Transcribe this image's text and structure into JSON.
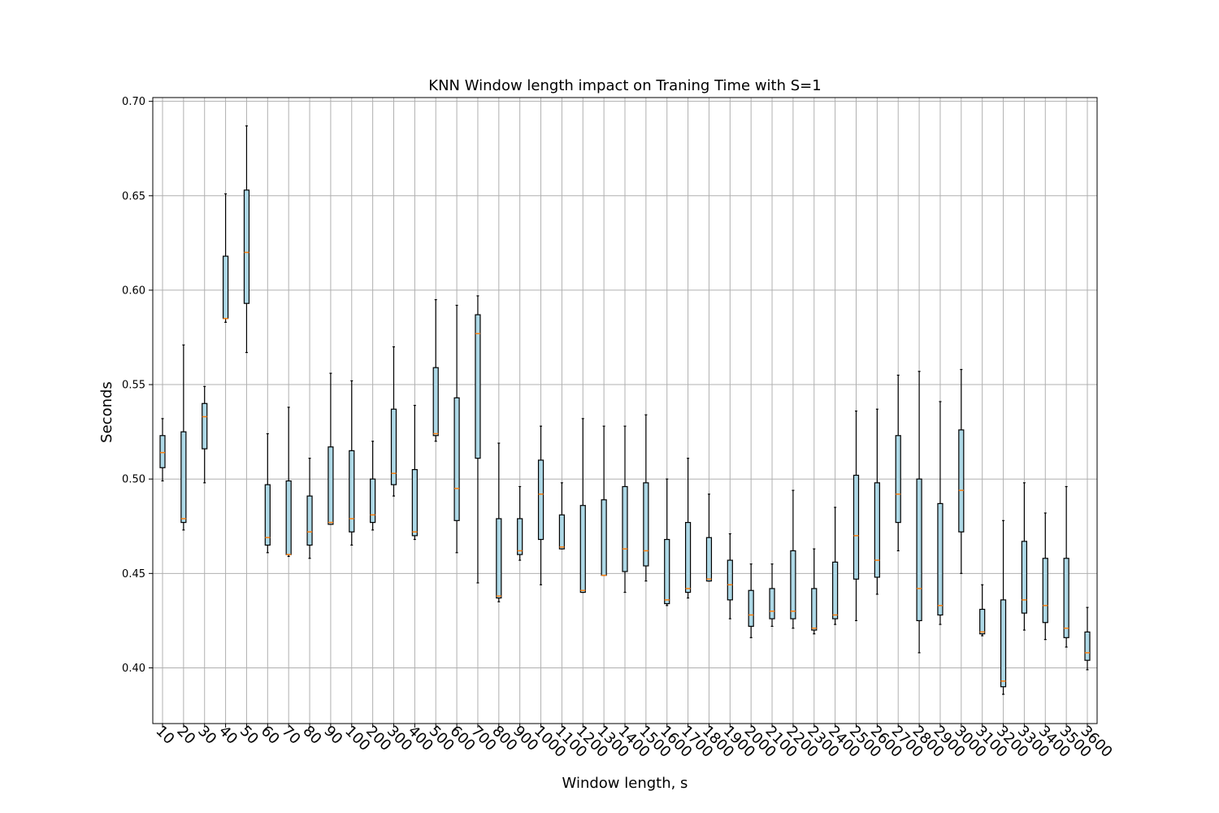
{
  "chart_data": {
    "type": "box",
    "title": "KNN Window length impact on Traning Time with S=1",
    "xlabel": "Window length, s",
    "ylabel": "Seconds",
    "ylim": [
      0.3705,
      0.702
    ],
    "yticks": [
      0.4,
      0.45,
      0.5,
      0.55,
      0.6,
      0.65,
      0.7
    ],
    "ytick_labels": [
      "0.40",
      "0.45",
      "0.50",
      "0.55",
      "0.60",
      "0.65",
      "0.70"
    ],
    "grid": true,
    "box_color": "#add8e6",
    "median_color": "#ff7f0e",
    "categories": [
      "10",
      "20",
      "30",
      "40",
      "50",
      "60",
      "70",
      "80",
      "90",
      "100",
      "200",
      "300",
      "400",
      "500",
      "600",
      "700",
      "800",
      "900",
      "1000",
      "1100",
      "1200",
      "1300",
      "1400",
      "1500",
      "1600",
      "1700",
      "1800",
      "1900",
      "2000",
      "2100",
      "2200",
      "2300",
      "2400",
      "2500",
      "2600",
      "2700",
      "2800",
      "2900",
      "3000",
      "3100",
      "3200",
      "3300",
      "3400",
      "3500",
      "3600"
    ],
    "boxes": [
      {
        "min": 0.499,
        "q1": 0.506,
        "median": 0.514,
        "q3": 0.523,
        "max": 0.532
      },
      {
        "min": 0.473,
        "q1": 0.477,
        "median": 0.479,
        "q3": 0.525,
        "max": 0.571
      },
      {
        "min": 0.498,
        "q1": 0.516,
        "median": 0.533,
        "q3": 0.54,
        "max": 0.549
      },
      {
        "min": 0.583,
        "q1": 0.585,
        "median": 0.585,
        "q3": 0.618,
        "max": 0.651
      },
      {
        "min": 0.567,
        "q1": 0.593,
        "median": 0.62,
        "q3": 0.653,
        "max": 0.687
      },
      {
        "min": 0.461,
        "q1": 0.465,
        "median": 0.469,
        "q3": 0.497,
        "max": 0.524
      },
      {
        "min": 0.459,
        "q1": 0.46,
        "median": 0.46,
        "q3": 0.499,
        "max": 0.538
      },
      {
        "min": 0.458,
        "q1": 0.465,
        "median": 0.472,
        "q3": 0.491,
        "max": 0.511
      },
      {
        "min": 0.476,
        "q1": 0.476,
        "median": 0.477,
        "q3": 0.517,
        "max": 0.556
      },
      {
        "min": 0.465,
        "q1": 0.472,
        "median": 0.479,
        "q3": 0.515,
        "max": 0.552
      },
      {
        "min": 0.473,
        "q1": 0.477,
        "median": 0.481,
        "q3": 0.5,
        "max": 0.52
      },
      {
        "min": 0.491,
        "q1": 0.497,
        "median": 0.503,
        "q3": 0.537,
        "max": 0.57
      },
      {
        "min": 0.468,
        "q1": 0.47,
        "median": 0.472,
        "q3": 0.505,
        "max": 0.539
      },
      {
        "min": 0.52,
        "q1": 0.523,
        "median": 0.524,
        "q3": 0.559,
        "max": 0.595
      },
      {
        "min": 0.461,
        "q1": 0.478,
        "median": 0.495,
        "q3": 0.543,
        "max": 0.592
      },
      {
        "min": 0.445,
        "q1": 0.511,
        "median": 0.577,
        "q3": 0.587,
        "max": 0.597
      },
      {
        "min": 0.435,
        "q1": 0.437,
        "median": 0.438,
        "q3": 0.479,
        "max": 0.519
      },
      {
        "min": 0.457,
        "q1": 0.46,
        "median": 0.462,
        "q3": 0.479,
        "max": 0.496
      },
      {
        "min": 0.444,
        "q1": 0.468,
        "median": 0.492,
        "q3": 0.51,
        "max": 0.528
      },
      {
        "min": 0.463,
        "q1": 0.463,
        "median": 0.464,
        "q3": 0.481,
        "max": 0.498
      },
      {
        "min": 0.44,
        "q1": 0.44,
        "median": 0.441,
        "q3": 0.486,
        "max": 0.532
      },
      {
        "min": 0.449,
        "q1": 0.449,
        "median": 0.449,
        "q3": 0.489,
        "max": 0.528
      },
      {
        "min": 0.44,
        "q1": 0.451,
        "median": 0.463,
        "q3": 0.496,
        "max": 0.528
      },
      {
        "min": 0.446,
        "q1": 0.454,
        "median": 0.462,
        "q3": 0.498,
        "max": 0.534
      },
      {
        "min": 0.433,
        "q1": 0.434,
        "median": 0.436,
        "q3": 0.468,
        "max": 0.5
      },
      {
        "min": 0.437,
        "q1": 0.44,
        "median": 0.442,
        "q3": 0.477,
        "max": 0.511
      },
      {
        "min": 0.446,
        "q1": 0.446,
        "median": 0.447,
        "q3": 0.469,
        "max": 0.492
      },
      {
        "min": 0.426,
        "q1": 0.436,
        "median": 0.444,
        "q3": 0.457,
        "max": 0.471
      },
      {
        "min": 0.416,
        "q1": 0.422,
        "median": 0.428,
        "q3": 0.441,
        "max": 0.455
      },
      {
        "min": 0.422,
        "q1": 0.426,
        "median": 0.43,
        "q3": 0.442,
        "max": 0.455
      },
      {
        "min": 0.421,
        "q1": 0.426,
        "median": 0.43,
        "q3": 0.462,
        "max": 0.494
      },
      {
        "min": 0.418,
        "q1": 0.42,
        "median": 0.421,
        "q3": 0.442,
        "max": 0.463
      },
      {
        "min": 0.423,
        "q1": 0.426,
        "median": 0.428,
        "q3": 0.456,
        "max": 0.485
      },
      {
        "min": 0.425,
        "q1": 0.447,
        "median": 0.47,
        "q3": 0.502,
        "max": 0.536
      },
      {
        "min": 0.439,
        "q1": 0.448,
        "median": 0.457,
        "q3": 0.498,
        "max": 0.537
      },
      {
        "min": 0.462,
        "q1": 0.477,
        "median": 0.492,
        "q3": 0.523,
        "max": 0.555
      },
      {
        "min": 0.408,
        "q1": 0.425,
        "median": 0.442,
        "q3": 0.5,
        "max": 0.557
      },
      {
        "min": 0.423,
        "q1": 0.428,
        "median": 0.433,
        "q3": 0.487,
        "max": 0.541
      },
      {
        "min": 0.45,
        "q1": 0.472,
        "median": 0.494,
        "q3": 0.526,
        "max": 0.558
      },
      {
        "min": 0.417,
        "q1": 0.418,
        "median": 0.419,
        "q3": 0.431,
        "max": 0.444
      },
      {
        "min": 0.386,
        "q1": 0.39,
        "median": 0.393,
        "q3": 0.436,
        "max": 0.478
      },
      {
        "min": 0.42,
        "q1": 0.429,
        "median": 0.436,
        "q3": 0.467,
        "max": 0.498
      },
      {
        "min": 0.415,
        "q1": 0.424,
        "median": 0.433,
        "q3": 0.458,
        "max": 0.482
      },
      {
        "min": 0.411,
        "q1": 0.416,
        "median": 0.421,
        "q3": 0.458,
        "max": 0.496
      },
      {
        "min": 0.399,
        "q1": 0.404,
        "median": 0.408,
        "q3": 0.419,
        "max": 0.432
      }
    ]
  }
}
